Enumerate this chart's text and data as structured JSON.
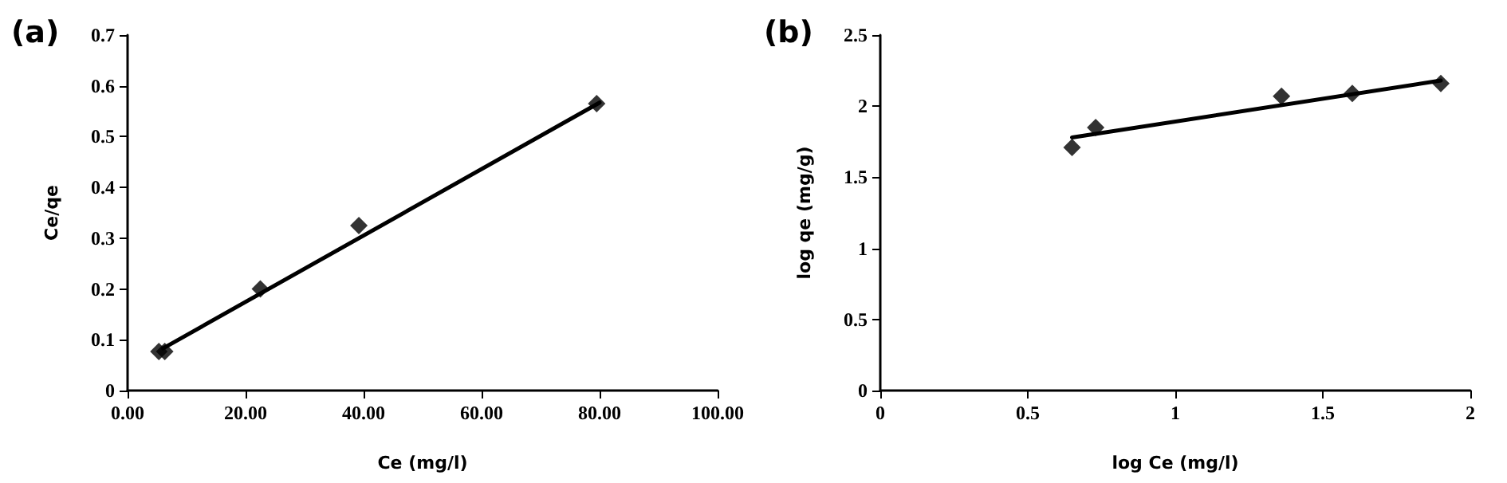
{
  "chart_data": [
    {
      "type": "scatter",
      "title": "(a)",
      "xlabel": "Ce (mg/l)",
      "ylabel": "Ce/qe",
      "line_style": "solid",
      "grid": false,
      "xlim": [
        0,
        100
      ],
      "xticks": [
        {
          "value": 0,
          "label": "0.00"
        },
        {
          "value": 20,
          "label": "20.00"
        },
        {
          "value": 40,
          "label": "40.00"
        },
        {
          "value": 60,
          "label": "60.00"
        },
        {
          "value": 80,
          "label": "80.00"
        },
        {
          "value": 100,
          "label": "100.00"
        }
      ],
      "ylim": [
        0,
        0.7
      ],
      "yticks": [
        0,
        0.1,
        0.2,
        0.3,
        0.4,
        0.5,
        0.6,
        0.7
      ],
      "series": [
        {
          "marker": "diamond",
          "color": "#000000",
          "x": [
            5.3,
            6.3,
            22.5,
            39.2,
            79.5
          ],
          "values": [
            0.077,
            0.077,
            0.2,
            0.325,
            0.565
          ]
        },
        {
          "type": "line",
          "marker": "none",
          "color": "#000000",
          "x": [
            6,
            80
          ],
          "values": [
            0.083,
            0.567
          ]
        }
      ]
    },
    {
      "type": "scatter",
      "title": "(b)",
      "xlabel": "log Ce (mg/l)",
      "ylabel": "log qe (mg/g)",
      "line_style": "solid",
      "grid": false,
      "xlim": [
        0,
        2
      ],
      "xticks": [
        0,
        0.5,
        1,
        1.5,
        2
      ],
      "ylim": [
        0,
        2.5
      ],
      "yticks": [
        0,
        0.5,
        1,
        1.5,
        2,
        2.5
      ],
      "series": [
        {
          "marker": "diamond",
          "color": "#000000",
          "x": [
            0.65,
            0.73,
            1.36,
            1.6,
            1.9
          ],
          "values": [
            1.71,
            1.85,
            2.07,
            2.09,
            2.16
          ]
        },
        {
          "type": "line",
          "marker": "none",
          "color": "#000000",
          "x": [
            0.65,
            1.9
          ],
          "values": [
            1.78,
            2.18
          ]
        }
      ]
    }
  ]
}
